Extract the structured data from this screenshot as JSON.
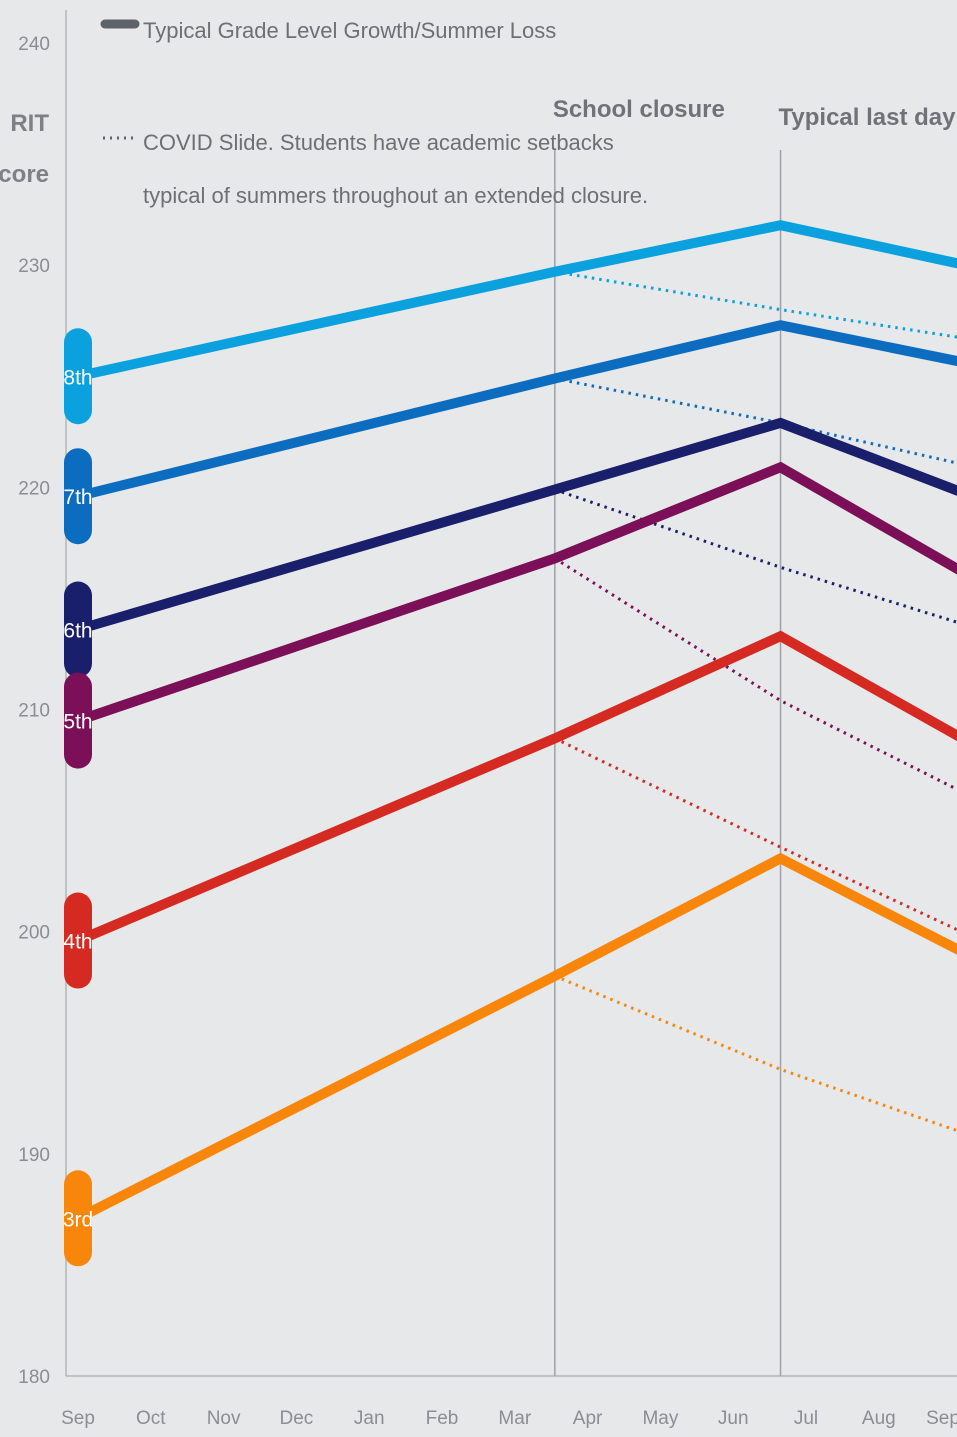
{
  "chart_data": {
    "type": "line",
    "ylabel": "RIT Score",
    "ylabel_lines": [
      "RIT",
      "Score"
    ],
    "ylim": [
      180,
      240
    ],
    "yticks": [
      180,
      190,
      200,
      210,
      220,
      230,
      240
    ],
    "x": [
      "Sep",
      "Oct",
      "Nov",
      "Dec",
      "Jan",
      "Feb",
      "Mar",
      "Apr",
      "May",
      "Jun",
      "Jul",
      "Aug",
      "Sep"
    ],
    "grid": false,
    "legend": [
      {
        "style": "solid",
        "label": "Typical Grade Level Growth/Summer Loss"
      },
      {
        "style": "dotted",
        "label_lines": [
          "COVID Slide. Students have academic setbacks",
          "typical of summers throughout an extended closure."
        ]
      }
    ],
    "annotations": [
      {
        "label": "School closure",
        "x": 6.55
      },
      {
        "label": "Typical last day",
        "x": 9.65
      }
    ],
    "series": [
      {
        "name": "8th",
        "color": "#0aa1de",
        "x": [
          0,
          6.55,
          9.65,
          12.2
        ],
        "values": [
          225.0,
          229.7,
          231.8,
          230.0
        ],
        "covid": {
          "x": [
            6.55,
            9.65,
            12.2
          ],
          "values": [
            229.7,
            228.0,
            226.7
          ]
        }
      },
      {
        "name": "7th",
        "color": "#0c6cbf",
        "x": [
          0,
          6.55,
          9.65,
          12.2
        ],
        "values": [
          219.6,
          224.9,
          227.3,
          225.6
        ],
        "covid": {
          "x": [
            6.55,
            9.65,
            12.2
          ],
          "values": [
            224.9,
            222.9,
            221.0
          ]
        }
      },
      {
        "name": "6th",
        "color": "#1a1f6b",
        "x": [
          0,
          6.55,
          9.65,
          12.2
        ],
        "values": [
          213.6,
          219.9,
          222.9,
          219.7
        ],
        "covid": {
          "x": [
            6.55,
            9.65,
            12.2
          ],
          "values": [
            219.9,
            216.4,
            213.8
          ]
        }
      },
      {
        "name": "5th",
        "color": "#7b0f58",
        "x": [
          0,
          6.55,
          9.65,
          12.2
        ],
        "values": [
          209.5,
          216.8,
          220.9,
          216.1
        ],
        "covid": {
          "x": [
            6.55,
            9.65,
            12.2
          ],
          "values": [
            216.8,
            210.4,
            206.2
          ]
        }
      },
      {
        "name": "4th",
        "color": "#d42a22",
        "x": [
          0,
          6.55,
          9.65,
          12.2
        ],
        "values": [
          199.6,
          208.7,
          213.3,
          208.6
        ],
        "covid": {
          "x": [
            6.55,
            9.65,
            12.2
          ],
          "values": [
            208.7,
            203.8,
            199.9
          ]
        }
      },
      {
        "name": "3rd",
        "color": "#f8860b",
        "x": [
          0,
          6.55,
          9.65,
          12.2
        ],
        "values": [
          187.1,
          198.0,
          203.3,
          199.0
        ],
        "covid": {
          "x": [
            6.55,
            9.65,
            12.2
          ],
          "values": [
            198.0,
            193.8,
            190.9
          ]
        }
      }
    ]
  }
}
